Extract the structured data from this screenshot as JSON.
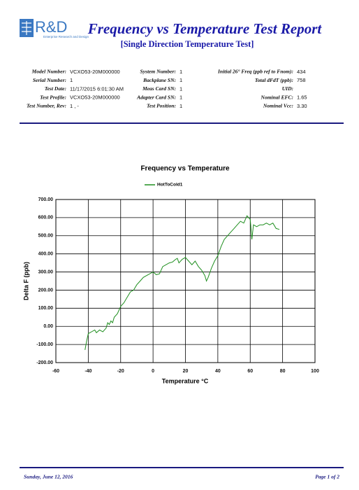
{
  "header": {
    "logo": "R&D",
    "logo_tagline": "Enterprise Research and Design",
    "title": "Frequency vs Temperature Test Report",
    "subtitle": "[Single Direction Temperature Test]"
  },
  "fields": [
    [
      {
        "label": "Model Number:",
        "value": "VCXO53-20M000000"
      },
      {
        "label": "Serial Number:",
        "value": "1"
      },
      {
        "label": "Test Date:",
        "value": "11/17/2015 6:01:30 AM"
      },
      {
        "label": "Test Profile:",
        "value": "VCXO53-20M000000"
      },
      {
        "label": "Test Number, Rev:",
        "value": "1 , -"
      }
    ],
    [
      {
        "label": "System Number:",
        "value": "1"
      },
      {
        "label": "Backplane SN:",
        "value": "1"
      },
      {
        "label": "Meas Card SN:",
        "value": "1"
      },
      {
        "label": "Adapter Card SN:",
        "value": "1"
      },
      {
        "label": "Test Position:",
        "value": "1"
      }
    ],
    [
      {
        "label": "Initial 26° Freq (ppb ref to Fnom):",
        "value": "434"
      },
      {
        "label": "Total dFdT (ppb):",
        "value": "758"
      },
      {
        "label": "UID:"
      },
      {
        "label": "Nominal EFC:",
        "value": "1.65"
      },
      {
        "label": "Nominal Vcc:",
        "value": "3.30"
      }
    ]
  ],
  "chart_data": {
    "type": "line",
    "title": "Frequency vs Temperature",
    "x_label": "Temperature °C",
    "y_label": "Delta F (ppb)",
    "x": [
      -42,
      -41,
      -40,
      -38,
      -36,
      -35,
      -33,
      -31,
      -29,
      -28,
      -27,
      -26,
      -25,
      -24,
      -22,
      -20,
      -18,
      -16,
      -14,
      -12,
      -10,
      -8,
      -6,
      -4,
      -2,
      0,
      2,
      4,
      6,
      8,
      10,
      12,
      14,
      15,
      16,
      18,
      20,
      22,
      24,
      26,
      28,
      30,
      32,
      33,
      34,
      36,
      38,
      40,
      42,
      44,
      46,
      48,
      50,
      52,
      54,
      56,
      58,
      60,
      61,
      62,
      64,
      66,
      68,
      70,
      72,
      74,
      76,
      78
    ],
    "series": [
      {
        "name": "HotToCold1",
        "color": "#1f8f1f",
        "values": [
          -130,
          -80,
          -40,
          -30,
          -20,
          -35,
          -20,
          -30,
          -10,
          20,
          10,
          30,
          20,
          50,
          70,
          110,
          130,
          160,
          190,
          200,
          230,
          250,
          270,
          280,
          290,
          300,
          285,
          290,
          330,
          340,
          350,
          355,
          370,
          375,
          350,
          370,
          380,
          360,
          340,
          360,
          330,
          310,
          280,
          250,
          270,
          320,
          360,
          390,
          440,
          480,
          500,
          520,
          540,
          560,
          580,
          570,
          610,
          590,
          480,
          560,
          550,
          560,
          560,
          570,
          560,
          570,
          540,
          535
        ]
      }
    ],
    "xlim": [
      -60,
      100
    ],
    "xticks": [
      -60,
      -40,
      -20,
      0,
      20,
      40,
      60,
      80,
      100
    ],
    "ylim": [
      -200,
      700
    ],
    "yticks": [
      {
        "value": -200,
        "label": "-200.00"
      },
      {
        "value": -100,
        "label": "-100.00"
      },
      {
        "value": 0,
        "label": "0.00"
      },
      {
        "value": 100,
        "label": "100.00"
      },
      {
        "value": 200,
        "label": "200.00"
      },
      {
        "value": 300,
        "label": "300.00"
      },
      {
        "value": 400,
        "label": "400.00"
      },
      {
        "value": 500,
        "label": "500.00"
      },
      {
        "value": 600,
        "label": "600.00"
      },
      {
        "value": 700,
        "label": "700.00"
      }
    ],
    "grid": true
  },
  "footer": {
    "date": "Sunday, June 12, 2016",
    "page": "Page 1 of 2"
  }
}
